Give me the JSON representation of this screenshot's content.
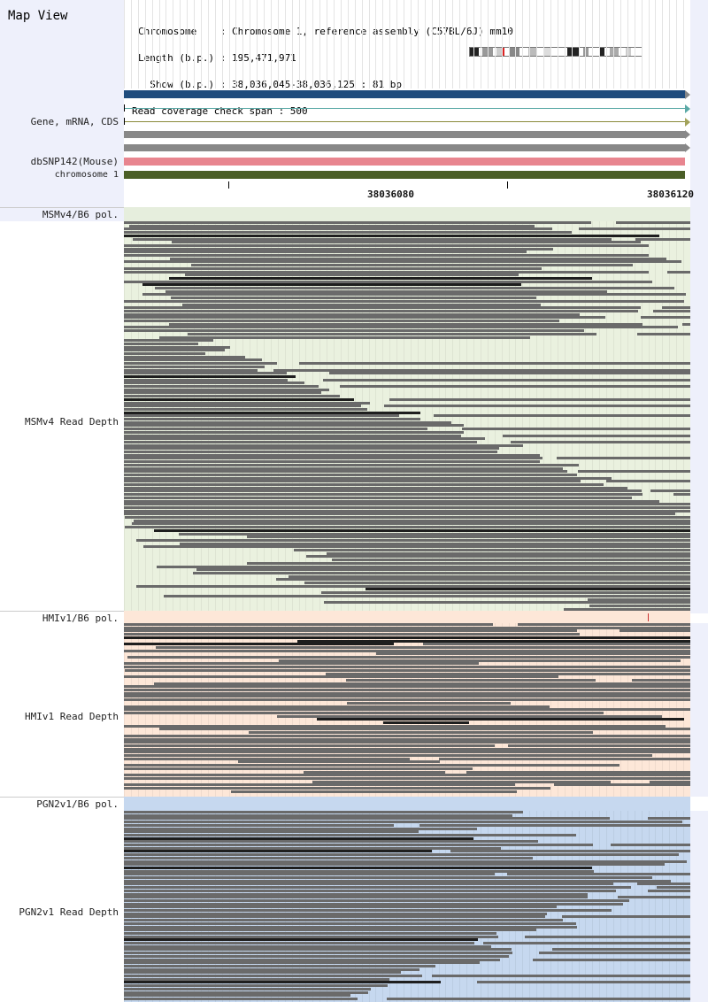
{
  "title": "Map View",
  "info": {
    "chromosome": "Chromosome    : Chromosome 1, reference assembly (C57BL/6J) mm10",
    "length": "Length (b.p.) : 195,471,971",
    "show": "  Show (b.p.) : 38,036,045-38,036,125 : 81 bp",
    "coverage": "Read coverage check span : 500"
  },
  "tracks": {
    "gene": "Gene, mRNA, CDS",
    "dbsnp": "dbSNP142(Mouse)",
    "chromosome": "chromosome 1"
  },
  "ruler": {
    "tick1": "38036080",
    "tick2": "38036120"
  },
  "sections": [
    {
      "pol_label": "MSMv4/B6 pol.",
      "depth_label": "MSMv4 Read Depth",
      "bg": "#eaf1df",
      "pol_bg": "#e6eedd"
    },
    {
      "pol_label": "HMIv1/B6 pol.",
      "depth_label": "HMIv1 Read Depth",
      "bg": "#fde7d8",
      "pol_bg": "#fde7d8"
    },
    {
      "pol_label": "PGN2v1/B6 pol.",
      "depth_label": "PGN2v1 Read Depth",
      "bg": "#c6d8ef",
      "pol_bg": "#c6d8ef"
    }
  ],
  "colors": {
    "left_panel": "#eef0fb",
    "gene_bar": "#1f4c7d",
    "snp_bar": "#e8858f",
    "chrom_bar": "#4a5e26",
    "read": "#6a6a6a"
  }
}
